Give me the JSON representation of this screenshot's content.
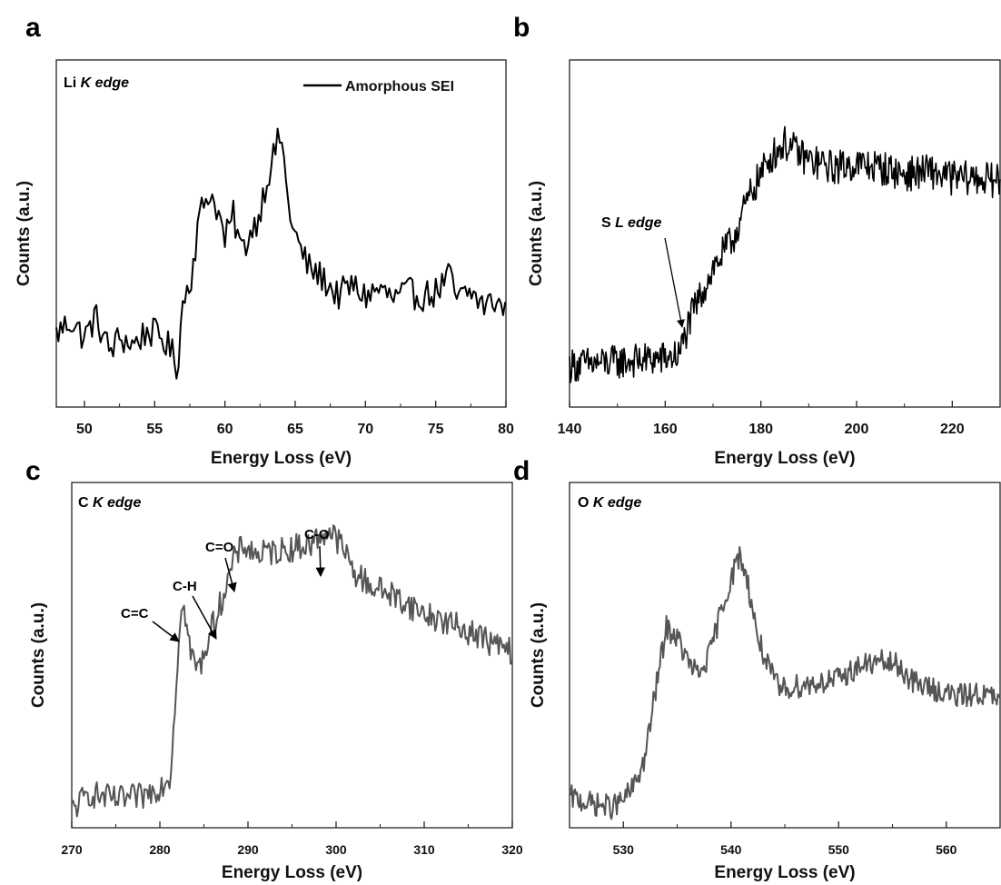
{
  "chart_data": [
    {
      "panel": "a",
      "type": "line",
      "edge_label": {
        "pre": "Li ",
        "em": "K edge"
      },
      "xlabel": "Energy Loss (eV)",
      "ylabel": "Counts (a.u.)",
      "xlim": [
        48,
        80
      ],
      "ylim": [
        0,
        1
      ],
      "x_ticks": [
        50,
        55,
        60,
        65,
        70,
        75,
        80
      ],
      "y_ticks": [],
      "color": "#000000",
      "legend": {
        "position": "top-right",
        "entries": [
          "Amorphous SEI"
        ]
      },
      "series": [
        {
          "name": "Amorphous SEI",
          "keypoints": [
            [
              48,
              0.21
            ],
            [
              49,
              0.25
            ],
            [
              50,
              0.2
            ],
            [
              50.8,
              0.26
            ],
            [
              51.8,
              0.16
            ],
            [
              52.5,
              0.2
            ],
            [
              53.5,
              0.18
            ],
            [
              54.5,
              0.22
            ],
            [
              55.5,
              0.2
            ],
            [
              56.2,
              0.16
            ],
            [
              56.6,
              0.11
            ],
            [
              57.0,
              0.3
            ],
            [
              57.6,
              0.38
            ],
            [
              58.2,
              0.55
            ],
            [
              58.8,
              0.62
            ],
            [
              59.4,
              0.58
            ],
            [
              60.0,
              0.48
            ],
            [
              60.6,
              0.55
            ],
            [
              61.2,
              0.45
            ],
            [
              61.8,
              0.5
            ],
            [
              62.4,
              0.55
            ],
            [
              63.0,
              0.66
            ],
            [
              63.6,
              0.74
            ],
            [
              64.0,
              0.79
            ],
            [
              64.4,
              0.62
            ],
            [
              64.8,
              0.52
            ],
            [
              65.4,
              0.45
            ],
            [
              66.0,
              0.4
            ],
            [
              67.0,
              0.37
            ],
            [
              68.0,
              0.32
            ],
            [
              69.0,
              0.35
            ],
            [
              70.0,
              0.32
            ],
            [
              71.0,
              0.34
            ],
            [
              72.0,
              0.31
            ],
            [
              73.0,
              0.33
            ],
            [
              74.0,
              0.32
            ],
            [
              75.0,
              0.33
            ],
            [
              76.0,
              0.38
            ],
            [
              76.5,
              0.31
            ],
            [
              77.5,
              0.33
            ],
            [
              78.5,
              0.29
            ],
            [
              79.3,
              0.31
            ],
            [
              80.0,
              0.27
            ]
          ],
          "noise": 0.045,
          "step": 0.15
        }
      ]
    },
    {
      "panel": "b",
      "type": "line",
      "edge_label": {
        "pre": "S ",
        "em": "L edge"
      },
      "xlabel": "Energy Loss (eV)",
      "ylabel": "Counts (a.u.)",
      "xlim": [
        140,
        230
      ],
      "ylim": [
        0,
        1
      ],
      "x_ticks": [
        140,
        160,
        180,
        200,
        220
      ],
      "y_ticks": [],
      "color": "#000000",
      "series": [
        {
          "keypoints": [
            [
              140,
              0.12
            ],
            [
              150,
              0.13
            ],
            [
              160,
              0.14
            ],
            [
              163,
              0.15
            ],
            [
              164,
              0.2
            ],
            [
              166,
              0.28
            ],
            [
              170,
              0.4
            ],
            [
              174,
              0.48
            ],
            [
              178,
              0.62
            ],
            [
              182,
              0.72
            ],
            [
              185,
              0.76
            ],
            [
              190,
              0.71
            ],
            [
              195,
              0.69
            ],
            [
              200,
              0.7
            ],
            [
              205,
              0.69
            ],
            [
              210,
              0.67
            ],
            [
              215,
              0.68
            ],
            [
              220,
              0.66
            ],
            [
              225,
              0.66
            ],
            [
              230,
              0.65
            ]
          ],
          "noise": 0.05,
          "step": 0.2
        }
      ],
      "annotations": [
        {
          "text": "S L edge",
          "x": 164,
          "y": 0.2
        }
      ]
    },
    {
      "panel": "c",
      "type": "line",
      "edge_label": {
        "pre": "C ",
        "em": "K edge"
      },
      "xlabel": "Energy Loss (eV)",
      "ylabel": "Counts (a.u.)",
      "xlim": [
        270,
        320
      ],
      "ylim": [
        0,
        1
      ],
      "x_ticks": [
        270,
        280,
        290,
        300,
        310,
        320
      ],
      "y_ticks": [],
      "color": "#555555",
      "series": [
        {
          "keypoints": [
            [
              270,
              0.05
            ],
            [
              272,
              0.1
            ],
            [
              275,
              0.08
            ],
            [
              278,
              0.09
            ],
            [
              280,
              0.12
            ],
            [
              281.2,
              0.15
            ],
            [
              281.7,
              0.35
            ],
            [
              282.3,
              0.62
            ],
            [
              282.8,
              0.63
            ],
            [
              283.5,
              0.5
            ],
            [
              284.5,
              0.46
            ],
            [
              285.5,
              0.55
            ],
            [
              286.5,
              0.62
            ],
            [
              287.5,
              0.7
            ],
            [
              288.5,
              0.78
            ],
            [
              289.5,
              0.82
            ],
            [
              291,
              0.79
            ],
            [
              293,
              0.8
            ],
            [
              295,
              0.81
            ],
            [
              297,
              0.82
            ],
            [
              299,
              0.86
            ],
            [
              300,
              0.84
            ],
            [
              301,
              0.8
            ],
            [
              302,
              0.74
            ],
            [
              304,
              0.7
            ],
            [
              306,
              0.68
            ],
            [
              308,
              0.65
            ],
            [
              310,
              0.62
            ],
            [
              312,
              0.6
            ],
            [
              314,
              0.58
            ],
            [
              316,
              0.56
            ],
            [
              318,
              0.53
            ],
            [
              320,
              0.51
            ]
          ],
          "noise": 0.04,
          "step": 0.15
        }
      ],
      "annotations": [
        {
          "text": "C=C",
          "x": 282.5,
          "y": 0.64
        },
        {
          "text": "C-H",
          "x": 286.3,
          "y": 0.58
        },
        {
          "text": "C=O",
          "x": 288.6,
          "y": 0.8
        },
        {
          "text": "C-O",
          "x": 298.7,
          "y": 0.85
        }
      ]
    },
    {
      "panel": "d",
      "type": "line",
      "edge_label": {
        "pre": "O ",
        "em": "K edge"
      },
      "xlabel": "Energy Loss (eV)",
      "ylabel": "Counts (a.u.)",
      "xlim": [
        525,
        565
      ],
      "ylim": [
        0,
        1
      ],
      "x_ticks": [
        530,
        540,
        550,
        560
      ],
      "y_ticks": [],
      "color": "#555555",
      "series": [
        {
          "keypoints": [
            [
              525,
              0.09
            ],
            [
              527,
              0.07
            ],
            [
              529,
              0.06
            ],
            [
              530,
              0.08
            ],
            [
              531,
              0.12
            ],
            [
              532,
              0.2
            ],
            [
              533,
              0.4
            ],
            [
              534,
              0.58
            ],
            [
              535,
              0.55
            ],
            [
              536,
              0.48
            ],
            [
              537,
              0.44
            ],
            [
              538,
              0.5
            ],
            [
              539,
              0.62
            ],
            [
              540,
              0.72
            ],
            [
              540.8,
              0.79
            ],
            [
              541.5,
              0.72
            ],
            [
              542.5,
              0.55
            ],
            [
              543.5,
              0.46
            ],
            [
              544.5,
              0.4
            ],
            [
              546,
              0.41
            ],
            [
              548,
              0.42
            ],
            [
              550,
              0.43
            ],
            [
              552,
              0.47
            ],
            [
              554,
              0.48
            ],
            [
              555.5,
              0.47
            ],
            [
              557,
              0.42
            ],
            [
              559,
              0.4
            ],
            [
              561,
              0.38
            ],
            [
              563,
              0.39
            ],
            [
              565,
              0.37
            ]
          ],
          "noise": 0.035,
          "step": 0.1
        }
      ]
    }
  ]
}
